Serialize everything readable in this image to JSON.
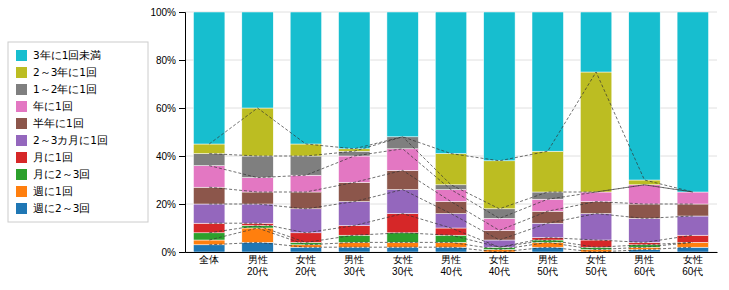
{
  "chart_data": {
    "type": "bar",
    "stacked": true,
    "categories": [
      "全体",
      "男性\n20代",
      "女性\n20代",
      "男性\n30代",
      "女性\n30代",
      "男性\n40代",
      "女性\n40代",
      "男性\n50代",
      "女性\n50代",
      "男性\n60代",
      "女性\n60代"
    ],
    "series": [
      {
        "name": "週に2～3回",
        "values": [
          3,
          4,
          2,
          2,
          2,
          2,
          0,
          2,
          0,
          1,
          2
        ]
      },
      {
        "name": "週に1回",
        "values": [
          2,
          6,
          1,
          2,
          2,
          2,
          1,
          2,
          1,
          1,
          2
        ]
      },
      {
        "name": "月に2～3回",
        "values": [
          3,
          1,
          1,
          3,
          4,
          3,
          1,
          1,
          1,
          1,
          0
        ]
      },
      {
        "name": "月に1回",
        "values": [
          4,
          1,
          4,
          4,
          8,
          3,
          0,
          1,
          3,
          1,
          3
        ]
      },
      {
        "name": "2～3カ月に1回",
        "values": [
          8,
          8,
          10,
          10,
          10,
          6,
          3,
          6,
          11,
          10,
          8
        ]
      },
      {
        "name": "半年に1回",
        "values": [
          7,
          5,
          7,
          8,
          8,
          5,
          4,
          5,
          5,
          6,
          5
        ]
      },
      {
        "name": "年に1回",
        "values": [
          9,
          6,
          7,
          11,
          9,
          5,
          5,
          5,
          4,
          8,
          5
        ]
      },
      {
        "name": "1～2年に1回",
        "values": [
          5,
          9,
          8,
          2,
          5,
          2,
          4,
          3,
          0,
          0,
          0
        ]
      },
      {
        "name": "2～3年に1回",
        "values": [
          4,
          20,
          5,
          1,
          0,
          13,
          20,
          17,
          50,
          2,
          0
        ]
      },
      {
        "name": "3年に1回未満",
        "values": [
          55,
          40,
          55,
          57,
          52,
          59,
          62,
          58,
          25,
          70,
          75
        ]
      }
    ],
    "ylim": [
      0,
      100
    ],
    "yticks": [
      {
        "value": 0,
        "label": "0%"
      },
      {
        "value": 20,
        "label": "20%"
      },
      {
        "value": 40,
        "label": "40%"
      },
      {
        "value": 60,
        "label": "60%"
      },
      {
        "value": 80,
        "label": "80%"
      },
      {
        "value": 100,
        "label": "100%"
      }
    ],
    "grid": true,
    "legend": "left"
  }
}
